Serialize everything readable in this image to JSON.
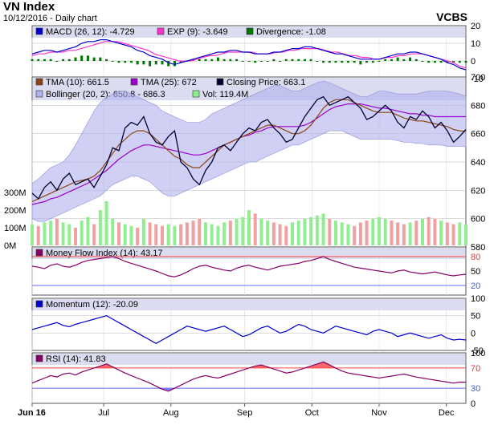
{
  "header": {
    "title": "VN Index",
    "subtitle": "10/12/2016 - Daily chart",
    "brand": "VCBS"
  },
  "colors": {
    "panel_bg": "#ffffff",
    "legend_bg": "#dcdcf0",
    "grid": "#c8c8c8",
    "macd": "#0000cc",
    "exp": "#ff33cc",
    "divergence": "#007700",
    "tma10": "#8b4513",
    "tma25": "#9900cc",
    "close": "#000033",
    "bollinger_fill": "#b0b0ee",
    "vol_up": "#90ee90",
    "vol_down": "#f0a0a0",
    "mfi": "#880066",
    "momentum": "#0000cc",
    "rsi": "#880066",
    "overbought": "#ff4444",
    "oversold": "#6666ff"
  },
  "chart_data": [
    {
      "panel": "macd",
      "type": "line",
      "legend": [
        {
          "label": "MACD (26, 12): -4.729",
          "color": "#0000cc"
        },
        {
          "label": "EXP (9): -3.649",
          "color": "#ff33cc"
        },
        {
          "label": "Divergence: -1.08",
          "color": "#007700"
        }
      ],
      "yticks": [
        "20",
        "10",
        "0",
        "-10"
      ],
      "ylim": [
        -10,
        20
      ],
      "series": [
        {
          "name": "MACD (26, 12)",
          "values": [
            4,
            5,
            6,
            6,
            5,
            6,
            7,
            8,
            10,
            11,
            11,
            12,
            12,
            11,
            10,
            9,
            8,
            6,
            5,
            3,
            2,
            1,
            -1,
            -2,
            -1,
            0,
            1,
            2,
            3,
            4,
            5,
            5,
            6,
            6,
            5,
            5,
            4,
            4,
            4,
            5,
            5,
            6,
            7,
            7,
            8,
            8,
            7,
            6,
            5,
            4,
            4,
            3,
            2,
            1,
            1,
            1,
            1,
            2,
            3,
            4,
            4,
            5,
            5,
            4,
            3,
            2,
            1,
            -1,
            -2,
            -4,
            -5
          ]
        },
        {
          "name": "EXP (9)",
          "values": [
            3,
            4,
            4,
            5,
            5,
            5,
            6,
            6,
            7,
            8,
            9,
            10,
            11,
            11,
            11,
            10,
            9,
            8,
            7,
            6,
            4,
            3,
            2,
            1,
            0,
            0,
            0,
            1,
            2,
            3,
            3,
            4,
            5,
            5,
            5,
            5,
            5,
            4,
            4,
            4,
            5,
            5,
            6,
            6,
            7,
            7,
            7,
            7,
            6,
            5,
            5,
            4,
            3,
            3,
            2,
            2,
            1,
            1,
            2,
            2,
            3,
            3,
            4,
            4,
            4,
            3,
            2,
            1,
            0,
            -1,
            -3,
            -4
          ]
        },
        {
          "name": "Divergence",
          "values": [
            1,
            1,
            1,
            1,
            0,
            1,
            1,
            2,
            3,
            3,
            2,
            2,
            1,
            0,
            -1,
            -1,
            -1,
            -2,
            -2,
            -3,
            -2,
            -2,
            -3,
            -3,
            -1,
            0,
            1,
            1,
            1,
            1,
            2,
            1,
            1,
            1,
            0,
            0,
            -1,
            0,
            0,
            1,
            0,
            1,
            1,
            1,
            1,
            1,
            0,
            -1,
            -1,
            -1,
            -1,
            -1,
            -1,
            -2,
            -1,
            -1,
            0,
            1,
            1,
            2,
            1,
            2,
            1,
            0,
            -1,
            -1,
            -1,
            -1,
            -1,
            -1,
            -1
          ]
        }
      ]
    },
    {
      "panel": "price",
      "type": "line",
      "legend": [
        {
          "label": "TMA (10): 661.5",
          "color": "#8b4513"
        },
        {
          "label": "TMA (25): 672",
          "color": "#9900cc"
        },
        {
          "label": "Closing Price: 663.1",
          "color": "#000033"
        },
        {
          "label": "Bollinger (20, 2): 650.8 - 686.3",
          "color": "#b0b0ee"
        },
        {
          "label": "Vol: 119.4M",
          "color": "#90ee90"
        }
      ],
      "yticks": [
        "700",
        "680",
        "660",
        "640",
        "620",
        "600",
        "580"
      ],
      "ylim": [
        580,
        700
      ],
      "vol_ticks": [
        "300M",
        "200M",
        "100M",
        "0M"
      ],
      "vol_lim": [
        0,
        300
      ],
      "x_labels": [
        "Jun 16",
        "Jul",
        "Aug",
        "Sep",
        "Oct",
        "Nov",
        "Dec"
      ],
      "close": [
        618,
        614,
        622,
        626,
        620,
        628,
        632,
        624,
        626,
        628,
        622,
        630,
        638,
        650,
        648,
        664,
        668,
        666,
        672,
        660,
        654,
        652,
        658,
        662,
        640,
        636,
        628,
        624,
        634,
        640,
        650,
        652,
        648,
        654,
        660,
        664,
        662,
        668,
        670,
        664,
        660,
        654,
        656,
        664,
        672,
        678,
        684,
        686,
        680,
        682,
        684,
        686,
        682,
        678,
        670,
        672,
        676,
        680,
        676,
        668,
        664,
        672,
        670,
        676,
        672,
        664,
        668,
        662,
        654,
        658,
        663
      ],
      "tma10": [
        612,
        614,
        616,
        618,
        620,
        622,
        624,
        626,
        627,
        628,
        630,
        634,
        640,
        646,
        652,
        656,
        660,
        662,
        662,
        660,
        656,
        652,
        648,
        644,
        642,
        638,
        636,
        636,
        640,
        644,
        648,
        652,
        654,
        656,
        658,
        660,
        662,
        664,
        666,
        666,
        664,
        662,
        660,
        660,
        662,
        666,
        672,
        678,
        682,
        684,
        684,
        684,
        682,
        680,
        678,
        676,
        675,
        675,
        675,
        673,
        671,
        670,
        669,
        669,
        668,
        667,
        666,
        665,
        663,
        662,
        661.5
      ],
      "tma25": [
        610,
        611,
        612,
        614,
        615,
        617,
        619,
        621,
        623,
        625,
        628,
        631,
        634,
        638,
        642,
        645,
        648,
        650,
        652,
        652,
        651,
        650,
        649,
        648,
        647,
        646,
        645,
        645,
        646,
        648,
        650,
        652,
        654,
        656,
        658,
        659,
        661,
        662,
        664,
        665,
        665,
        665,
        665,
        665,
        666,
        668,
        671,
        674,
        677,
        679,
        680,
        681,
        681,
        681,
        680,
        679,
        678,
        678,
        677,
        676,
        675,
        674,
        674,
        673,
        673,
        672,
        672,
        672,
        672,
        672,
        672
      ],
      "boll_upper": [
        625,
        628,
        632,
        636,
        638,
        640,
        645,
        652,
        660,
        668,
        676,
        682,
        686,
        688,
        690,
        690,
        688,
        686,
        684,
        682,
        680,
        676,
        674,
        672,
        670,
        668,
        668,
        668,
        670,
        674,
        676,
        678,
        680,
        682,
        684,
        686,
        688,
        690,
        692,
        694,
        694,
        692,
        690,
        690,
        692,
        694,
        696,
        697,
        696,
        694,
        692,
        690,
        688,
        686,
        686,
        688,
        690,
        690,
        689,
        688,
        688,
        688,
        688,
        689,
        690,
        690,
        690,
        690,
        689,
        688,
        686.3
      ],
      "boll_lower": [
        600,
        598,
        598,
        600,
        602,
        604,
        606,
        608,
        610,
        612,
        614,
        616,
        620,
        624,
        626,
        628,
        630,
        630,
        628,
        626,
        622,
        618,
        616,
        616,
        618,
        620,
        622,
        624,
        626,
        628,
        630,
        632,
        634,
        636,
        638,
        640,
        640,
        642,
        644,
        646,
        648,
        650,
        652,
        652,
        654,
        656,
        658,
        660,
        662,
        662,
        662,
        660,
        658,
        656,
        656,
        656,
        656,
        656,
        656,
        655,
        654,
        654,
        653,
        653,
        652,
        652,
        652,
        651,
        651,
        651,
        650.8
      ],
      "volume": [
        120,
        110,
        130,
        140,
        150,
        130,
        120,
        100,
        140,
        160,
        120,
        200,
        250,
        150,
        130,
        120,
        110,
        100,
        150,
        130,
        120,
        110,
        120,
        110,
        120,
        130,
        140,
        150,
        130,
        120,
        110,
        130,
        140,
        150,
        160,
        200,
        180,
        150,
        140,
        130,
        120,
        110,
        130,
        140,
        150,
        160,
        170,
        180,
        150,
        140,
        130,
        120,
        110,
        130,
        140,
        150,
        160,
        150,
        140,
        130,
        120,
        130,
        140,
        150,
        160,
        150,
        140,
        130,
        120,
        130,
        119.4
      ]
    },
    {
      "panel": "mfi",
      "type": "line",
      "legend": [
        {
          "label": "Money Flow Index (14): 43.17",
          "color": "#880066"
        }
      ],
      "yticks": [
        "80",
        "50",
        "20"
      ],
      "ylim": [
        0,
        100
      ],
      "overbought": 80,
      "oversold": 20,
      "values": [
        60,
        58,
        55,
        62,
        65,
        60,
        58,
        62,
        68,
        72,
        74,
        76,
        78,
        80,
        76,
        70,
        66,
        62,
        58,
        54,
        50,
        45,
        40,
        38,
        42,
        48,
        55,
        60,
        62,
        58,
        55,
        52,
        50,
        56,
        60,
        62,
        58,
        55,
        52,
        56,
        60,
        62,
        64,
        66,
        70,
        72,
        76,
        80,
        74,
        70,
        66,
        62,
        58,
        56,
        54,
        52,
        50,
        48,
        46,
        50,
        52,
        48,
        46,
        44,
        46,
        48,
        45,
        42,
        40,
        42,
        43.17
      ]
    },
    {
      "panel": "momentum",
      "type": "line",
      "legend": [
        {
          "label": "Momentum (12): -20.09",
          "color": "#0000cc"
        }
      ],
      "yticks": [
        "100",
        "50",
        "0",
        "-50"
      ],
      "ylim": [
        -50,
        100
      ],
      "values": [
        10,
        15,
        20,
        25,
        30,
        22,
        18,
        25,
        30,
        35,
        40,
        45,
        50,
        40,
        30,
        20,
        10,
        0,
        -10,
        -20,
        -30,
        -20,
        -10,
        0,
        10,
        20,
        15,
        10,
        5,
        10,
        15,
        20,
        10,
        0,
        -10,
        -5,
        5,
        15,
        20,
        10,
        0,
        5,
        15,
        25,
        20,
        10,
        5,
        0,
        10,
        20,
        15,
        10,
        5,
        0,
        -5,
        5,
        10,
        5,
        0,
        -10,
        -5,
        0,
        -5,
        -10,
        -15,
        -10,
        -5,
        -15,
        -20,
        -18,
        -20.09
      ]
    },
    {
      "panel": "rsi",
      "type": "line",
      "legend": [
        {
          "label": "RSI (14): 41.83",
          "color": "#880066"
        }
      ],
      "yticks": [
        "100",
        "70",
        "30",
        "0"
      ],
      "ylim": [
        0,
        100
      ],
      "overbought": 70,
      "oversold": 30,
      "values": [
        40,
        45,
        50,
        55,
        52,
        58,
        60,
        56,
        62,
        66,
        70,
        74,
        78,
        72,
        66,
        60,
        55,
        50,
        45,
        40,
        34,
        28,
        24,
        30,
        36,
        42,
        48,
        52,
        55,
        52,
        50,
        54,
        58,
        62,
        66,
        70,
        74,
        76,
        72,
        68,
        64,
        60,
        62,
        66,
        70,
        74,
        78,
        82,
        76,
        70,
        64,
        60,
        58,
        56,
        54,
        52,
        50,
        52,
        54,
        56,
        58,
        55,
        52,
        50,
        48,
        46,
        44,
        42,
        40,
        42,
        41.83
      ]
    }
  ]
}
